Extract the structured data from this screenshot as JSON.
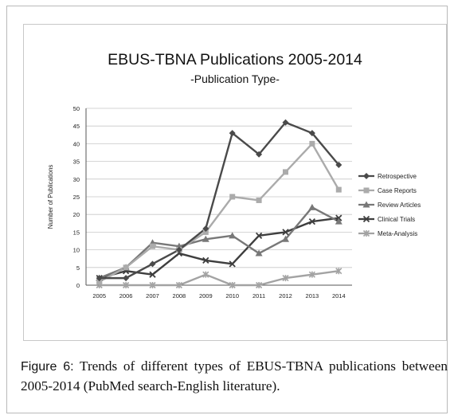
{
  "figure": {
    "label": "Figure 6:",
    "caption": " Trends of different types of EBUS-TBNA publications between 2005-2014 (PubMed search-English literature)."
  },
  "colors": {
    "retrospective": "#4a4a4a",
    "case_reports": "#ababab",
    "review_articles": "#787878",
    "clinical_trials": "#3e3e3e",
    "meta_analysis": "#a3a3a3",
    "grid": "#c8c8c8",
    "axis": "#555555"
  },
  "chart_data": {
    "type": "line",
    "title": "EBUS-TBNA Publications 2005-2014",
    "subtitle": "-Publication Type-",
    "xlabel": "",
    "ylabel": "Number of Publications",
    "categories": [
      "2005",
      "2006",
      "2007",
      "2008",
      "2009",
      "2010",
      "2011",
      "2012",
      "2013",
      "2014"
    ],
    "ylim": [
      0,
      50
    ],
    "yticks": [
      0,
      5,
      10,
      15,
      20,
      25,
      30,
      35,
      40,
      45,
      50
    ],
    "grid": true,
    "legend_position": "right",
    "series": [
      {
        "name": "Retrospective",
        "marker": "diamond",
        "color": "#4a4a4a",
        "values": [
          2,
          2,
          6,
          10,
          16,
          43,
          37,
          46,
          43,
          34
        ]
      },
      {
        "name": "Case Reports",
        "marker": "square",
        "color": "#ababab",
        "values": [
          1,
          5,
          11,
          10,
          15,
          25,
          24,
          32,
          40,
          27
        ]
      },
      {
        "name": "Review Articles",
        "marker": "triangle",
        "color": "#787878",
        "values": [
          2,
          5,
          12,
          11,
          13,
          14,
          9,
          13,
          22,
          18
        ]
      },
      {
        "name": "Clinical Trials",
        "marker": "x",
        "color": "#3e3e3e",
        "values": [
          2,
          4,
          3,
          9,
          7,
          6,
          14,
          15,
          18,
          19
        ]
      },
      {
        "name": "Meta-Analysis",
        "marker": "star",
        "color": "#a3a3a3",
        "values": [
          0,
          0,
          0,
          0,
          3,
          0,
          0,
          2,
          3,
          4
        ]
      }
    ]
  }
}
